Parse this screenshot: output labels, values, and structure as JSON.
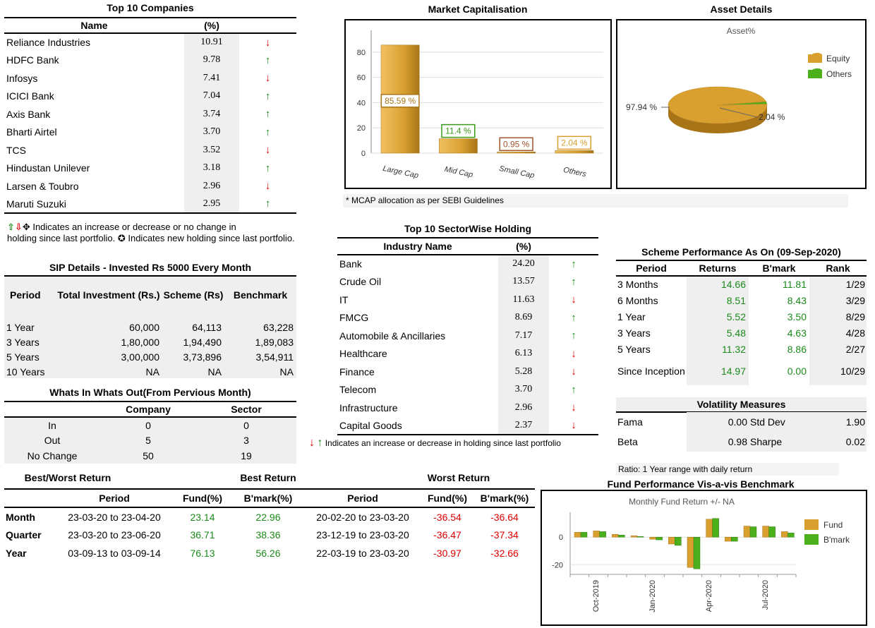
{
  "top10": {
    "title": "Top 10 Companies",
    "col_name": "Name",
    "col_pct": "(%)",
    "rows": [
      {
        "name": "Reliance Industries",
        "pct": "10.91",
        "dir": "down"
      },
      {
        "name": "HDFC Bank",
        "pct": "9.78",
        "dir": "up"
      },
      {
        "name": "Infosys",
        "pct": "7.41",
        "dir": "down"
      },
      {
        "name": "ICICI Bank",
        "pct": "7.04",
        "dir": "up"
      },
      {
        "name": "Axis Bank",
        "pct": "3.74",
        "dir": "up"
      },
      {
        "name": "Bharti Airtel",
        "pct": "3.70",
        "dir": "up"
      },
      {
        "name": "TCS",
        "pct": "3.52",
        "dir": "down"
      },
      {
        "name": "Hindustan Unilever",
        "pct": "3.18",
        "dir": "up"
      },
      {
        "name": "Larsen & Toubro",
        "pct": "2.96",
        "dir": "down"
      },
      {
        "name": "Maruti Suzuki",
        "pct": "2.95",
        "dir": "up"
      }
    ],
    "legend_line1": "Indicates an increase or decrease or no change in",
    "legend_line2a": "holding since last portfolio.",
    "legend_line2b": "Indicates new holding since last portfolio."
  },
  "market_cap": {
    "title": "Market Capitalisation",
    "note": "* MCAP allocation as per SEBI Guidelines"
  },
  "asset": {
    "title": "Asset Details",
    "chart_title": "Asset%"
  },
  "sip": {
    "title": "SIP Details - Invested Rs 5000 Every Month",
    "headers": {
      "period": "Period",
      "invest": "Total Investment (Rs.)",
      "scheme": "Scheme (Rs)",
      "bench": "Benchmark"
    },
    "rows": [
      {
        "period": "1 Year",
        "invest": "60,000",
        "scheme": "64,113",
        "bench": "63,228"
      },
      {
        "period": "3 Years",
        "invest": "1,80,000",
        "scheme": "1,94,490",
        "bench": "1,89,083"
      },
      {
        "period": "5 Years",
        "invest": "3,00,000",
        "scheme": "3,73,896",
        "bench": "3,54,911"
      },
      {
        "period": "10 Years",
        "invest": "NA",
        "scheme": "NA",
        "bench": "NA"
      }
    ]
  },
  "whats": {
    "title": "Whats In Whats Out(From Pervious Month)",
    "col_company": "Company",
    "col_sector": "Sector",
    "rows": [
      {
        "label": "In",
        "company": "0",
        "sector": "0"
      },
      {
        "label": "Out",
        "company": "5",
        "sector": "3"
      },
      {
        "label": "No Change",
        "company": "50",
        "sector": "19"
      }
    ]
  },
  "sector": {
    "title": "Top 10 SectorWise Holding",
    "col_name": "Industry Name",
    "col_pct": "(%)",
    "rows": [
      {
        "name": "Bank",
        "pct": "24.20",
        "dir": "up"
      },
      {
        "name": "Crude Oil",
        "pct": "13.57",
        "dir": "up"
      },
      {
        "name": "IT",
        "pct": "11.63",
        "dir": "down"
      },
      {
        "name": "FMCG",
        "pct": "8.69",
        "dir": "up"
      },
      {
        "name": "Automobile & Ancillaries",
        "pct": "7.17",
        "dir": "up"
      },
      {
        "name": "Healthcare",
        "pct": "6.13",
        "dir": "down"
      },
      {
        "name": "Finance",
        "pct": "5.28",
        "dir": "down"
      },
      {
        "name": "Telecom",
        "pct": "3.70",
        "dir": "up"
      },
      {
        "name": "Infrastructure",
        "pct": "2.96",
        "dir": "down"
      },
      {
        "name": "Capital Goods",
        "pct": "2.37",
        "dir": "down"
      }
    ],
    "legend": "Indicates an increase or decrease in holding since last portfolio"
  },
  "perf": {
    "title": "Scheme Performance As On (09-Sep-2020)",
    "headers": {
      "period": "Period",
      "returns": "Returns",
      "bmark": "B'mark",
      "rank": "Rank"
    },
    "rows": [
      {
        "period": "3 Months",
        "returns": "14.66",
        "bmark": "11.81",
        "rank": "1/29"
      },
      {
        "period": "6 Months",
        "returns": "8.51",
        "bmark": "8.43",
        "rank": "3/29"
      },
      {
        "period": "1 Year",
        "returns": "5.52",
        "bmark": "3.50",
        "rank": "8/29"
      },
      {
        "period": "3 Years",
        "returns": "5.48",
        "bmark": "4.63",
        "rank": "4/28"
      },
      {
        "period": "5 Years",
        "returns": "11.32",
        "bmark": "8.86",
        "rank": "2/27"
      },
      {
        "period": "Since Inception",
        "returns": "14.97",
        "bmark": "0.00",
        "rank": "10/29"
      }
    ]
  },
  "volatility": {
    "title": "Volatility Measures",
    "rows": [
      {
        "l1": "Fama",
        "v1": "0.00",
        "l2": "Std Dev",
        "v2": "1.90"
      },
      {
        "l1": "Beta",
        "v1": "0.98",
        "l2": "Sharpe",
        "v2": "0.02"
      }
    ],
    "ratio_note": "Ratio: 1 Year range with daily return"
  },
  "best_worst": {
    "title_main": "Best/Worst Return",
    "title_best": "Best Return",
    "title_worst": "Worst Return",
    "headers": {
      "period": "Period",
      "fund": "Fund(%)",
      "bmark": "B'mark(%)"
    },
    "rows": [
      {
        "label": "Month",
        "bp": "23-03-20 to 23-04-20",
        "bf": "23.14",
        "bb": "22.96",
        "wp": "20-02-20 to 23-03-20",
        "wf": "-36.54",
        "wb": "-36.64"
      },
      {
        "label": "Quarter",
        "bp": "23-03-20 to 23-06-20",
        "bf": "36.71",
        "bb": "38.36",
        "wp": "23-12-19 to 23-03-20",
        "wf": "-36.47",
        "wb": "-37.34"
      },
      {
        "label": "Year",
        "bp": "03-09-13 to 03-09-14",
        "bf": "76.13",
        "bb": "56.26",
        "wp": "22-03-19 to 23-03-20",
        "wf": "-30.97",
        "wb": "-32.66"
      }
    ]
  },
  "fund_perf": {
    "title": "Fund Performance Vis-a-vis Benchmark",
    "chart_title": "Monthly Fund Return +/- NA"
  },
  "colors": {
    "gold": "#d9a030",
    "gold_dark": "#a87418",
    "green": "#4caf1c",
    "up": "#1a8a1a",
    "down": "#e00000"
  },
  "chart_data": [
    {
      "type": "bar",
      "title": "Market Capitalisation",
      "categories": [
        "Large Cap",
        "Mid Cap",
        "Small Cap",
        "Others"
      ],
      "values": [
        85.59,
        11.4,
        0.95,
        2.04
      ],
      "labels": [
        "85.59 %",
        "11.4 %",
        "0.95 %",
        "2.04 %"
      ],
      "yticks": [
        "0",
        "20",
        "40",
        "60",
        "80"
      ],
      "ylim": [
        0,
        95
      ]
    },
    {
      "type": "pie",
      "title": "Asset%",
      "categories": [
        "Equity",
        "Others"
      ],
      "values": [
        97.94,
        2.04
      ],
      "labels": [
        "97.94 %",
        "2.04 %"
      ]
    },
    {
      "type": "bar",
      "title": "Monthly Fund Return +/- NA",
      "series": [
        {
          "name": "Fund",
          "values": [
            3.5,
            4.5,
            2,
            1,
            -1.5,
            -5,
            -22,
            13,
            -3,
            8,
            8,
            4
          ]
        },
        {
          "name": "B'mark",
          "values": [
            3.5,
            4,
            1.5,
            0.5,
            -2,
            -6,
            -23,
            13.5,
            -3,
            7.5,
            7.5,
            3
          ]
        }
      ],
      "xticks": [
        "Oct-2019",
        "Jan-2020",
        "Apr-2020",
        "Jul-2020"
      ],
      "yticks": [
        "0",
        "-20"
      ],
      "ylim": [
        -27,
        18
      ]
    }
  ]
}
